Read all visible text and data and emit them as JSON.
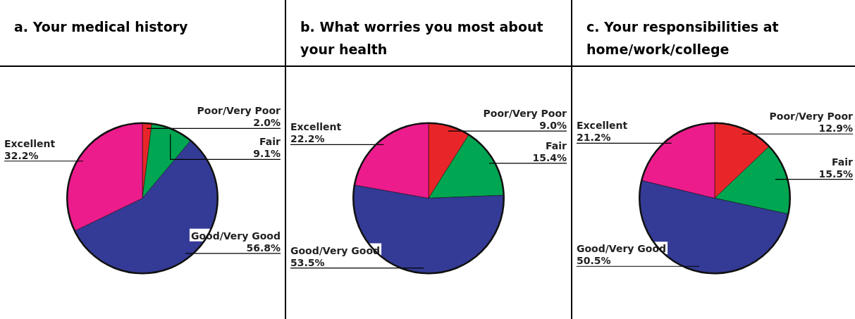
{
  "chart_data": [
    {
      "type": "pie",
      "title": "a. Your medical history",
      "categories": [
        "Poor/Very Poor",
        "Fair",
        "Good/Very Good",
        "Excellent"
      ],
      "values": [
        2.0,
        9.1,
        56.8,
        32.2
      ],
      "value_labels": [
        "2.0%",
        "9.1%",
        "56.8%",
        "32.2%"
      ],
      "colors": [
        "#e8262a",
        "#00a651",
        "#343b96",
        "#ec1c8c"
      ]
    },
    {
      "type": "pie",
      "title": "b. What worries you most about your health",
      "categories": [
        "Poor/Very Poor",
        "Fair",
        "Good/Very Good",
        "Excellent"
      ],
      "values": [
        9.0,
        15.4,
        53.5,
        22.2
      ],
      "value_labels": [
        "9.0%",
        "15.4%",
        "53.5%",
        "22.2%"
      ],
      "colors": [
        "#e8262a",
        "#00a651",
        "#343b96",
        "#ec1c8c"
      ]
    },
    {
      "type": "pie",
      "title": "c. Your responsibilities at home/work/college",
      "categories": [
        "Poor/Very Poor",
        "Fair",
        "Good/Very Good",
        "Excellent"
      ],
      "values": [
        12.9,
        15.5,
        50.5,
        21.2
      ],
      "value_labels": [
        "12.9%",
        "15.5%",
        "50.5%",
        "21.2%"
      ],
      "colors": [
        "#e8262a",
        "#00a651",
        "#343b96",
        "#ec1c8c"
      ]
    }
  ]
}
